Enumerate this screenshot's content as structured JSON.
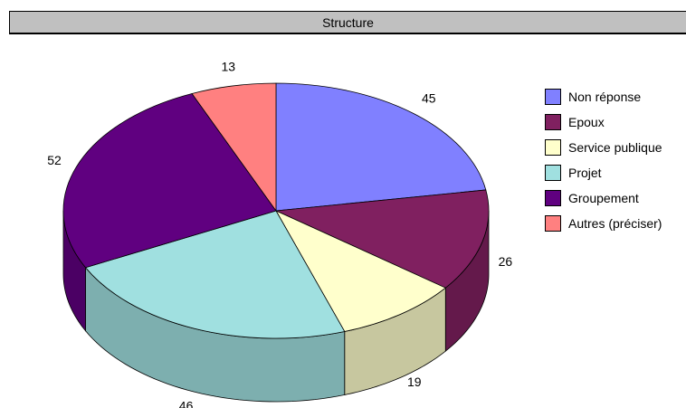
{
  "chart_data": {
    "type": "pie",
    "title": "Structure",
    "categories": [
      "Non réponse",
      "Epoux",
      "Service publique",
      "Projet",
      "Groupement",
      "Autres (préciser)"
    ],
    "values": [
      45,
      26,
      19,
      46,
      52,
      13
    ],
    "colors": [
      "#8080ff",
      "#802060",
      "#ffffcc",
      "#a0e0e0",
      "#600080",
      "#ff8080"
    ],
    "three_d": true,
    "legend_position": "right"
  }
}
